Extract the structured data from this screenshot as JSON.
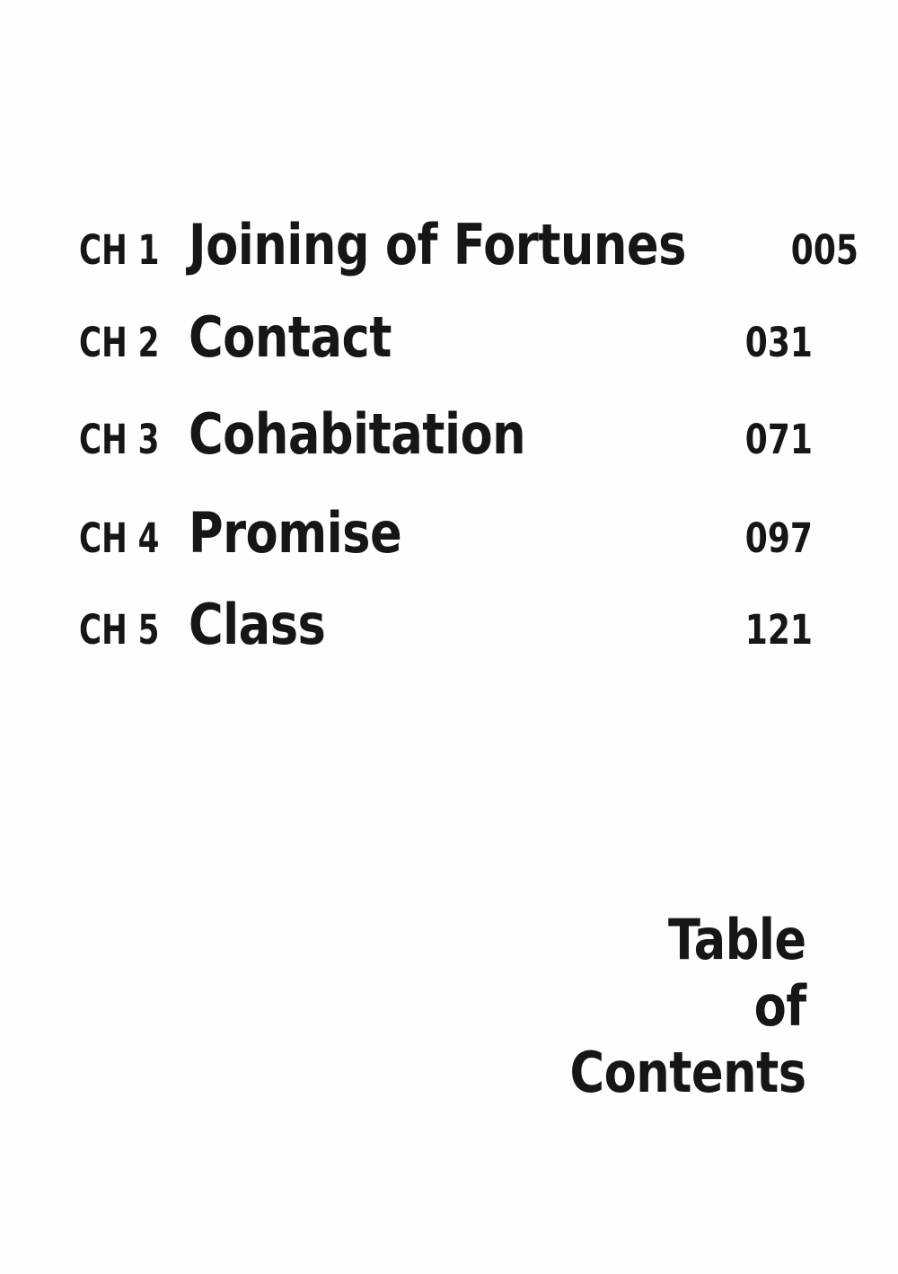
{
  "page": {
    "background_color": "#fefefe",
    "text_color": "#161616"
  },
  "toc": {
    "rows": [
      {
        "chapter": "CH 1",
        "title": "Joining of Fortunes",
        "page": "005"
      },
      {
        "chapter": "CH 2",
        "title": "Contact",
        "page": "031"
      },
      {
        "chapter": "CH 3",
        "title": "Cohabitation",
        "page": "071"
      },
      {
        "chapter": "CH 4",
        "title": "Promise",
        "page": "097"
      },
      {
        "chapter": "CH 5",
        "title": "Class",
        "page": "121"
      }
    ]
  },
  "footer": {
    "title_lines": [
      "Table",
      "of",
      "Contents"
    ]
  }
}
